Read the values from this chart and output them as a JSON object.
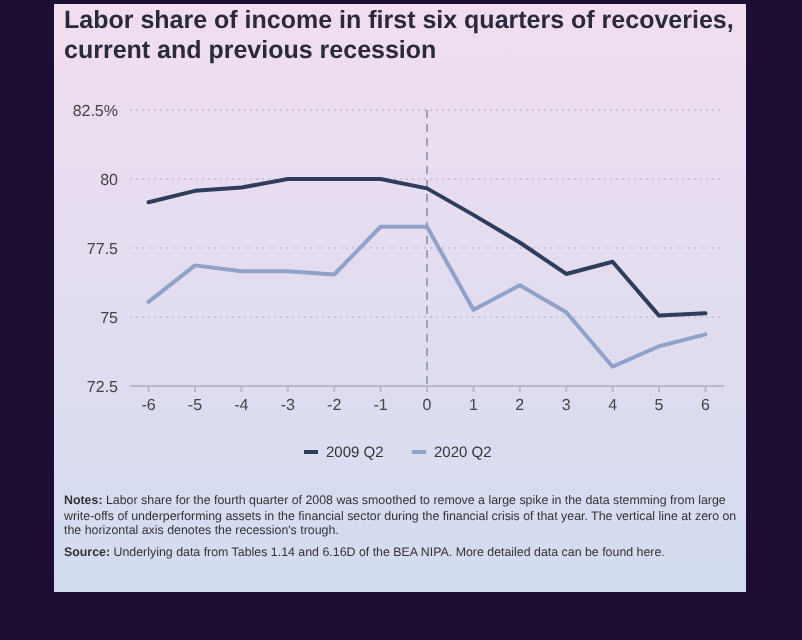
{
  "chart_data": {
    "type": "line",
    "title": "Labor share of income in first six quarters of recoveries, current and previous recession",
    "x": [
      -6,
      -5,
      -4,
      -3,
      -2,
      -1,
      0,
      1,
      2,
      3,
      4,
      5,
      6
    ],
    "xlim": [
      -6.4,
      6.4
    ],
    "xticks": [
      -6,
      -5,
      -4,
      -3,
      -2,
      -1,
      0,
      1,
      2,
      3,
      4,
      5,
      6
    ],
    "ylim": [
      72.5,
      82.5
    ],
    "yticks": [
      72.5,
      75,
      77.5,
      80,
      {
        "value": 82.5,
        "label": "82.5%"
      }
    ],
    "series": [
      {
        "name": "2009 Q2",
        "color": "#2f3d5c",
        "values": [
          79.16,
          79.57,
          79.69,
          80,
          80,
          80,
          79.66,
          78.7,
          77.7,
          76.56,
          77,
          75.05,
          75.14
        ]
      },
      {
        "name": "2020 Q2",
        "color": "#8fa2c9",
        "values": [
          75.55,
          76.87,
          76.66,
          76.66,
          76.54,
          78.27,
          78.27,
          75.26,
          76.15,
          75.17,
          73.2,
          73.94,
          74.37
        ]
      }
    ],
    "ref_lines": [
      {
        "axis": "x",
        "value": 0,
        "line_style": "dashed",
        "color": "#9aa0b8"
      }
    ],
    "grid": "y",
    "legend": "bottom",
    "marker": "none",
    "line_style": "solid",
    "annotations": [
      "Notes: Labor share for the fourth quarter of 2008 was smoothed to remove a large spike in the data stemming from large write-offs of underperforming assets in the financial sector during the financial crisis of that year. The vertical line at zero on the horizontal axis denotes the recession's trough.",
      "Source: Underlying data from Tables 1.14 and 6.16D of the BEA NIPA. More detailed data can be found here."
    ]
  }
}
